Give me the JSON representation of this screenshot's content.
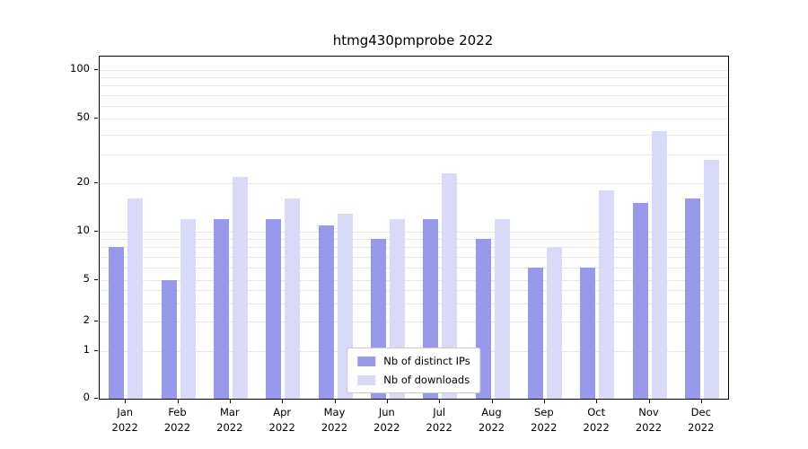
{
  "chart_data": {
    "type": "bar",
    "title": "htmg430pmprobe 2022",
    "categories": [
      "Jan",
      "Feb",
      "Mar",
      "Apr",
      "May",
      "Jun",
      "Jul",
      "Aug",
      "Sep",
      "Oct",
      "Nov",
      "Dec"
    ],
    "year_label": "2022",
    "series": [
      {
        "name": "Nb of distinct IPs",
        "color": "#9999eb",
        "values": [
          8,
          5,
          12,
          12,
          11,
          9,
          12,
          9,
          6,
          6,
          15,
          16
        ]
      },
      {
        "name": "Nb of downloads",
        "color": "#d9d9f8",
        "values": [
          16,
          12,
          22,
          16,
          13,
          12,
          23,
          12,
          8,
          18,
          42,
          28
        ]
      }
    ],
    "y_ticks": [
      0,
      1,
      2,
      5,
      10,
      20,
      50,
      100
    ],
    "scale": "symlog",
    "ylim": [
      0,
      120
    ],
    "grid": true,
    "legend_position": "lower center"
  }
}
